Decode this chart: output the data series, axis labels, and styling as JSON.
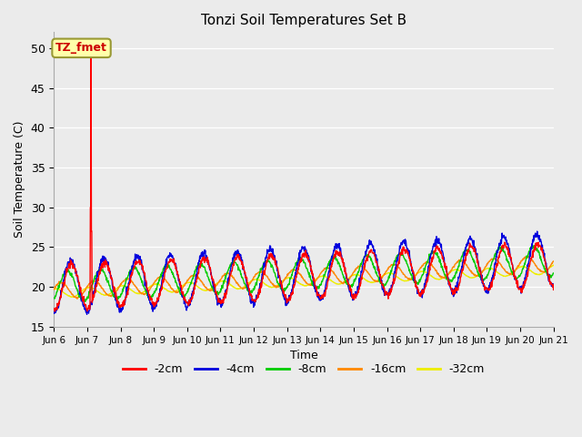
{
  "title": "Tonzi Soil Temperatures Set B",
  "xlabel": "Time",
  "ylabel": "Soil Temperature (C)",
  "ylim": [
    15,
    52
  ],
  "yticks": [
    15,
    20,
    25,
    30,
    35,
    40,
    45,
    50
  ],
  "bg_color": "#ebebeb",
  "annotation_text": "TZ_fmet",
  "annotation_bg": "#ffffaa",
  "annotation_border": "#999933",
  "annotation_text_color": "#cc0000",
  "colors": {
    "2cm": "#ff0000",
    "4cm": "#0000dd",
    "8cm": "#00cc00",
    "16cm": "#ff8800",
    "32cm": "#eeee00"
  },
  "labels": {
    "2cm": "-2cm",
    "4cm": "-4cm",
    "8cm": "-8cm",
    "16cm": "-16cm",
    "32cm": "-32cm"
  },
  "x_start": 6.0,
  "x_end": 21.0,
  "xtick_positions": [
    6,
    7,
    8,
    9,
    10,
    11,
    12,
    13,
    14,
    15,
    16,
    17,
    18,
    19,
    20,
    21
  ],
  "xtick_labels": [
    "Jun 6",
    "Jun 7",
    "Jun 8",
    "Jun 9",
    "Jun 10",
    "Jun 11",
    "Jun 12",
    "Jun 13",
    "Jun 14",
    "Jun 15",
    "Jun 16",
    "Jun 17",
    "Jun 18",
    "Jun 19",
    "Jun 20",
    "Jun 21"
  ]
}
